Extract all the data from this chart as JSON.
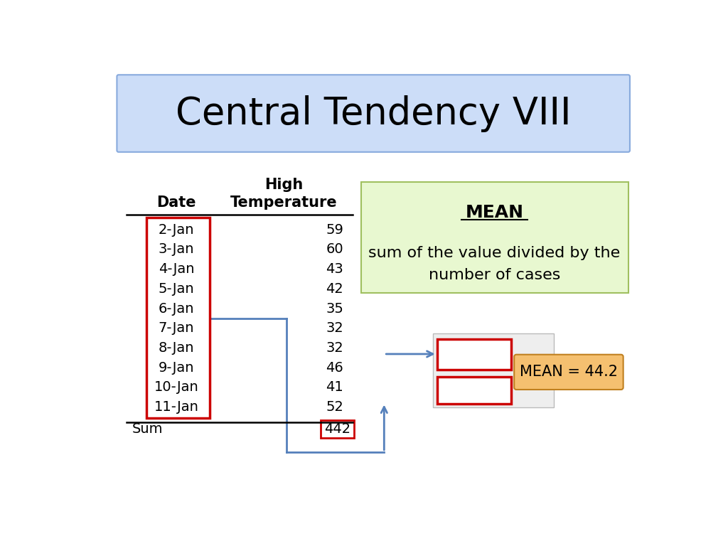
{
  "title": "Central Tendency VIII",
  "title_fontsize": 38,
  "title_bg_color": "#ccddf8",
  "title_border_color": "#88aadd",
  "dates": [
    "2-Jan",
    "3-Jan",
    "4-Jan",
    "5-Jan",
    "6-Jan",
    "7-Jan",
    "8-Jan",
    "9-Jan",
    "10-Jan",
    "11-Jan"
  ],
  "temps": [
    59,
    60,
    43,
    42,
    35,
    32,
    32,
    46,
    41,
    52
  ],
  "sum_val": "442",
  "mean_val": "MEAN = 44.2",
  "mean_box_color": "#f5c070",
  "mean_box_border": "#c08020",
  "green_box_bg": "#e8f8d0",
  "green_box_border": "#a0c060",
  "mean_label": "MEAN",
  "mean_desc_line1": "sum of the value divided by the",
  "mean_desc_line2": "number of cases",
  "arrow_color": "#5580bb",
  "red_border_color": "#cc0000",
  "bg_color": "white"
}
